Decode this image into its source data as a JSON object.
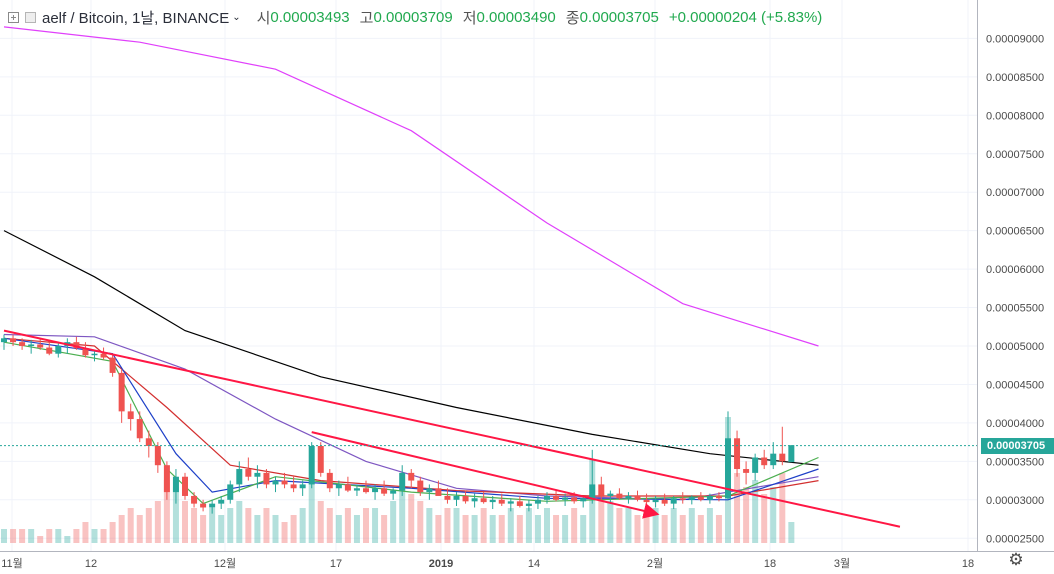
{
  "header": {
    "title": "aelf / Bitcoin, 1날, BINANCE",
    "open_label": "시",
    "open": "0.00003493",
    "high_label": "고",
    "high": "0.00003709",
    "low_label": "저",
    "low": "0.00003490",
    "close_label": "종",
    "close": "0.00003705",
    "change": "+0.00000204 (+5.83%)"
  },
  "last_price_tag": "0.00003705",
  "colors": {
    "up": "#26a69a",
    "down": "#ef5350",
    "sma_long": "#e040fb",
    "sma_mid": "#000000",
    "trendline": "#ff1744"
  },
  "icons": {
    "expand": "plus-square-icon",
    "settings": "gear-icon"
  },
  "chart_data": {
    "type": "candlestick",
    "symbol": "aelf / Bitcoin",
    "interval": "1날",
    "exchange": "BINANCE",
    "x_ticks": [
      "11월",
      "12",
      "12월",
      "17",
      "2019",
      "14",
      "2월",
      "18",
      "3월",
      "18"
    ],
    "y_ticks": [
      "0.00009000",
      "0.00008500",
      "0.00008000",
      "0.00007500",
      "0.00007000",
      "0.00006500",
      "0.00006000",
      "0.00005500",
      "0.00005000",
      "0.00004500",
      "0.00004000",
      "0.00003500",
      "0.00003000",
      "0.00002500"
    ],
    "y_range": [
      2.35e-05,
      9.4e-05
    ],
    "last_ohlc": {
      "open": 3.493e-05,
      "high": 3.709e-05,
      "low": 3.49e-05,
      "close": 3.705e-05
    },
    "ohlc_approx": [
      [
        5.05,
        5.15,
        4.95,
        5.1
      ],
      [
        5.1,
        5.15,
        5.0,
        5.05
      ],
      [
        5.05,
        5.1,
        4.95,
        5.0
      ],
      [
        5.0,
        5.08,
        4.9,
        5.02
      ],
      [
        5.02,
        5.1,
        4.95,
        4.98
      ],
      [
        4.98,
        5.05,
        4.88,
        4.9
      ],
      [
        4.9,
        5.05,
        4.85,
        5.0
      ],
      [
        5.0,
        5.1,
        4.9,
        5.05
      ],
      [
        5.05,
        5.12,
        4.95,
        4.97
      ],
      [
        4.97,
        5.05,
        4.85,
        4.88
      ],
      [
        4.88,
        4.95,
        4.8,
        4.9
      ],
      [
        4.9,
        4.98,
        4.82,
        4.85
      ],
      [
        4.85,
        4.9,
        4.6,
        4.65
      ],
      [
        4.65,
        4.7,
        4.0,
        4.15
      ],
      [
        4.15,
        4.25,
        3.9,
        4.05
      ],
      [
        4.05,
        4.15,
        3.75,
        3.8
      ],
      [
        3.8,
        3.9,
        3.55,
        3.7
      ],
      [
        3.7,
        3.75,
        3.35,
        3.45
      ],
      [
        3.45,
        3.5,
        3.0,
        3.1
      ],
      [
        3.1,
        3.4,
        2.95,
        3.3
      ],
      [
        3.3,
        3.35,
        3.0,
        3.05
      ],
      [
        3.05,
        3.1,
        2.9,
        2.95
      ],
      [
        2.95,
        3.0,
        2.85,
        2.9
      ],
      [
        2.9,
        3.0,
        2.82,
        2.95
      ],
      [
        2.95,
        3.05,
        2.88,
        3.0
      ],
      [
        3.0,
        3.25,
        2.95,
        3.2
      ],
      [
        3.2,
        3.5,
        3.1,
        3.4
      ],
      [
        3.4,
        3.55,
        3.25,
        3.3
      ],
      [
        3.3,
        3.45,
        3.15,
        3.35
      ],
      [
        3.35,
        3.4,
        3.15,
        3.2
      ],
      [
        3.2,
        3.3,
        3.1,
        3.25
      ],
      [
        3.25,
        3.35,
        3.15,
        3.2
      ],
      [
        3.2,
        3.3,
        3.1,
        3.15
      ],
      [
        3.15,
        3.25,
        3.05,
        3.2
      ],
      [
        3.2,
        3.75,
        3.15,
        3.7
      ],
      [
        3.7,
        3.75,
        3.3,
        3.35
      ],
      [
        3.35,
        3.4,
        3.1,
        3.15
      ],
      [
        3.15,
        3.25,
        3.05,
        3.2
      ],
      [
        3.2,
        3.3,
        3.1,
        3.12
      ],
      [
        3.12,
        3.2,
        3.05,
        3.15
      ],
      [
        3.15,
        3.25,
        3.08,
        3.1
      ],
      [
        3.1,
        3.2,
        3.0,
        3.15
      ],
      [
        3.15,
        3.25,
        3.05,
        3.08
      ],
      [
        3.08,
        3.15,
        3.0,
        3.12
      ],
      [
        3.12,
        3.45,
        3.05,
        3.35
      ],
      [
        3.35,
        3.4,
        3.15,
        3.25
      ],
      [
        3.25,
        3.3,
        3.05,
        3.1
      ],
      [
        3.1,
        3.2,
        3.0,
        3.15
      ],
      [
        3.15,
        3.25,
        3.08,
        3.05
      ],
      [
        3.05,
        3.15,
        2.95,
        3.0
      ],
      [
        3.0,
        3.1,
        2.92,
        3.05
      ],
      [
        3.05,
        3.12,
        2.95,
        2.98
      ],
      [
        2.98,
        3.08,
        2.9,
        3.02
      ],
      [
        3.02,
        3.1,
        2.95,
        2.97
      ],
      [
        2.97,
        3.05,
        2.88,
        3.0
      ],
      [
        3.0,
        3.08,
        2.92,
        2.95
      ],
      [
        2.95,
        3.02,
        2.85,
        2.98
      ],
      [
        2.98,
        3.05,
        2.9,
        2.92
      ],
      [
        2.92,
        3.0,
        2.85,
        2.95
      ],
      [
        2.95,
        3.05,
        2.88,
        3.0
      ],
      [
        3.0,
        3.1,
        2.95,
        3.05
      ],
      [
        3.05,
        3.12,
        2.98,
        3.0
      ],
      [
        3.0,
        3.08,
        2.92,
        3.03
      ],
      [
        3.03,
        3.1,
        2.95,
        2.98
      ],
      [
        2.98,
        3.05,
        2.9,
        3.02
      ],
      [
        3.02,
        3.65,
        2.95,
        3.2
      ],
      [
        3.2,
        3.3,
        3.0,
        3.05
      ],
      [
        3.05,
        3.12,
        2.95,
        3.08
      ],
      [
        3.08,
        3.15,
        3.0,
        3.02
      ],
      [
        3.02,
        3.1,
        2.95,
        3.05
      ],
      [
        3.05,
        3.12,
        2.98,
        3.0
      ],
      [
        3.0,
        3.08,
        2.92,
        2.97
      ],
      [
        2.97,
        3.05,
        2.9,
        3.0
      ],
      [
        3.0,
        3.08,
        2.92,
        2.95
      ],
      [
        2.95,
        3.05,
        2.88,
        3.02
      ],
      [
        3.02,
        3.1,
        2.95,
        3.0
      ],
      [
        3.0,
        3.06,
        2.94,
        3.04
      ],
      [
        3.04,
        3.1,
        2.98,
        3.0
      ],
      [
        3.0,
        3.08,
        2.95,
        3.05
      ],
      [
        3.05,
        3.1,
        2.98,
        3.02
      ],
      [
        3.02,
        4.15,
        3.0,
        3.8
      ],
      [
        3.8,
        3.9,
        3.3,
        3.4
      ],
      [
        3.4,
        3.5,
        3.2,
        3.35
      ],
      [
        3.35,
        3.6,
        3.25,
        3.55
      ],
      [
        3.55,
        3.65,
        3.4,
        3.45
      ],
      [
        3.45,
        3.75,
        3.4,
        3.6
      ],
      [
        3.6,
        3.95,
        3.45,
        3.5
      ],
      [
        3.49,
        3.71,
        3.49,
        3.71
      ]
    ],
    "moving_averages": [
      {
        "color": "#e040fb",
        "points": [
          [
            0,
            9.15
          ],
          [
            15,
            8.95
          ],
          [
            30,
            8.6
          ],
          [
            45,
            7.8
          ],
          [
            60,
            6.6
          ],
          [
            75,
            5.55
          ],
          [
            90,
            5.0
          ]
        ]
      },
      {
        "color": "#000000",
        "points": [
          [
            0,
            6.5
          ],
          [
            10,
            5.9
          ],
          [
            20,
            5.2
          ],
          [
            35,
            4.6
          ],
          [
            50,
            4.2
          ],
          [
            65,
            3.85
          ],
          [
            78,
            3.6
          ],
          [
            90,
            3.45
          ]
        ]
      },
      {
        "color": "#7e57c2",
        "points": [
          [
            0,
            5.15
          ],
          [
            10,
            5.12
          ],
          [
            20,
            4.7
          ],
          [
            30,
            4.05
          ],
          [
            40,
            3.5
          ],
          [
            50,
            3.15
          ],
          [
            60,
            3.05
          ],
          [
            75,
            3.0
          ],
          [
            90,
            3.3
          ]
        ]
      },
      {
        "color": "#d32f2f",
        "points": [
          [
            0,
            5.1
          ],
          [
            10,
            5.0
          ],
          [
            18,
            4.2
          ],
          [
            25,
            3.45
          ],
          [
            35,
            3.25
          ],
          [
            50,
            3.12
          ],
          [
            65,
            3.05
          ],
          [
            80,
            3.05
          ],
          [
            90,
            3.25
          ]
        ]
      },
      {
        "color": "#1e40c8",
        "points": [
          [
            0,
            5.1
          ],
          [
            12,
            4.9
          ],
          [
            19,
            3.6
          ],
          [
            23,
            3.1
          ],
          [
            30,
            3.25
          ],
          [
            45,
            3.15
          ],
          [
            60,
            3.02
          ],
          [
            80,
            3.0
          ],
          [
            90,
            3.4
          ]
        ]
      },
      {
        "color": "#4caf50",
        "points": [
          [
            0,
            5.05
          ],
          [
            12,
            4.8
          ],
          [
            18,
            3.4
          ],
          [
            22,
            2.95
          ],
          [
            30,
            3.3
          ],
          [
            45,
            3.1
          ],
          [
            60,
            2.98
          ],
          [
            80,
            3.05
          ],
          [
            90,
            3.55
          ]
        ]
      }
    ],
    "trendlines": [
      {
        "color": "#ff1744",
        "from": [
          0,
          5.2
        ],
        "to": [
          99,
          2.65
        ]
      },
      {
        "color": "#ff1744",
        "from": [
          34,
          3.88
        ],
        "to": [
          72,
          2.82
        ],
        "arrow": true
      }
    ],
    "volume_approx": [
      2,
      2,
      2,
      2,
      1,
      2,
      2,
      1,
      2,
      3,
      2,
      2,
      3,
      4,
      5,
      4,
      5,
      6,
      9,
      8,
      6,
      5,
      4,
      5,
      4,
      5,
      6,
      5,
      4,
      5,
      4,
      3,
      4,
      5,
      9,
      6,
      5,
      4,
      5,
      4,
      5,
      5,
      4,
      6,
      8,
      7,
      6,
      5,
      4,
      5,
      5,
      4,
      4,
      5,
      4,
      4,
      5,
      4,
      5,
      4,
      5,
      4,
      4,
      5,
      4,
      12,
      7,
      6,
      5,
      5,
      4,
      4,
      5,
      4,
      5,
      4,
      5,
      4,
      5,
      4,
      18,
      10,
      8,
      9,
      7,
      8,
      10,
      3
    ]
  }
}
